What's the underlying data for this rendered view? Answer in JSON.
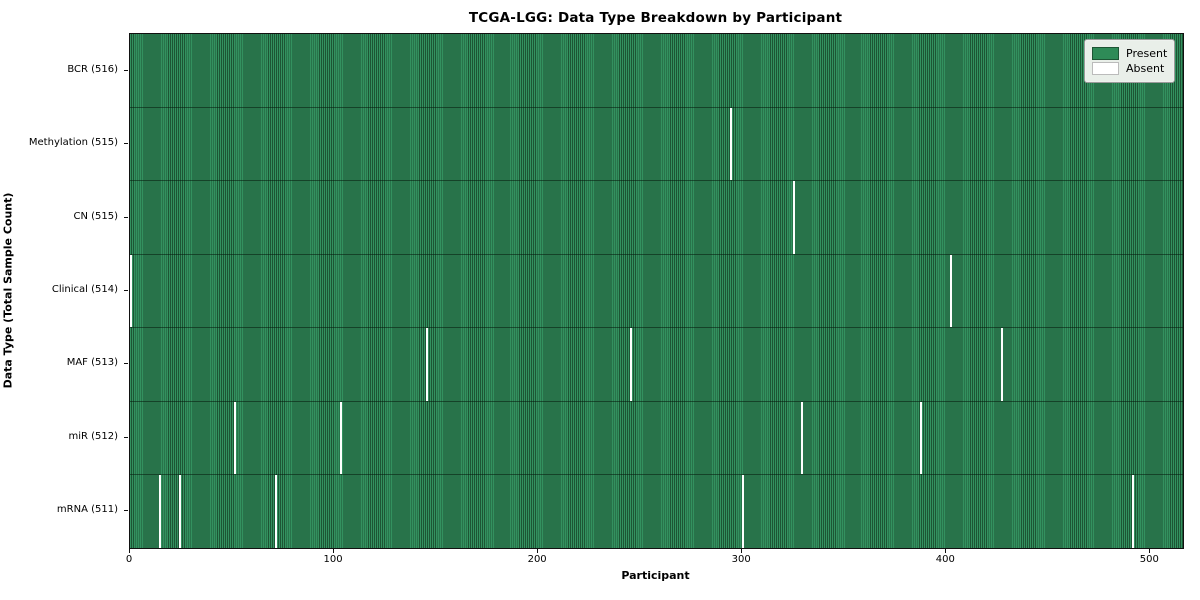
{
  "figure": {
    "title": "TCGA-LGG: Data Type Breakdown by Participant",
    "xlabel": "Participant",
    "ylabel": "Data Type (Total Sample Count)"
  },
  "legend": {
    "items": [
      {
        "label": "Present",
        "color": "#2e8b57"
      },
      {
        "label": "Absent",
        "color": "#ffffff"
      }
    ]
  },
  "chart_data": {
    "type": "heatmap",
    "title": "TCGA-LGG: Data Type Breakdown by Participant",
    "xlabel": "Participant",
    "ylabel": "Data Type (Total Sample Count)",
    "legend_position": "upper right",
    "grid": false,
    "n_participants": 516,
    "x_range": [
      0,
      516
    ],
    "x_ticks": [
      0,
      100,
      200,
      300,
      400,
      500
    ],
    "present_color": "#2e8b57",
    "absent_color": "#ffffff",
    "rows": [
      {
        "label": "BCR (516)",
        "data_type": "BCR",
        "present_count": 516,
        "absent_participants": []
      },
      {
        "label": "Methylation (515)",
        "data_type": "Methylation",
        "present_count": 515,
        "absent_participants": [
          294
        ]
      },
      {
        "label": "CN (515)",
        "data_type": "CN",
        "present_count": 515,
        "absent_participants": [
          325
        ]
      },
      {
        "label": "Clinical (514)",
        "data_type": "Clinical",
        "present_count": 514,
        "absent_participants": [
          0,
          402
        ]
      },
      {
        "label": "MAF (513)",
        "data_type": "MAF",
        "present_count": 513,
        "absent_participants": [
          145,
          245,
          427
        ]
      },
      {
        "label": "miR (512)",
        "data_type": "miR",
        "present_count": 512,
        "absent_participants": [
          51,
          103,
          329,
          387
        ]
      },
      {
        "label": "mRNA (511)",
        "data_type": "mRNA",
        "present_count": 511,
        "absent_participants": [
          14,
          24,
          71,
          300,
          491
        ]
      }
    ]
  }
}
